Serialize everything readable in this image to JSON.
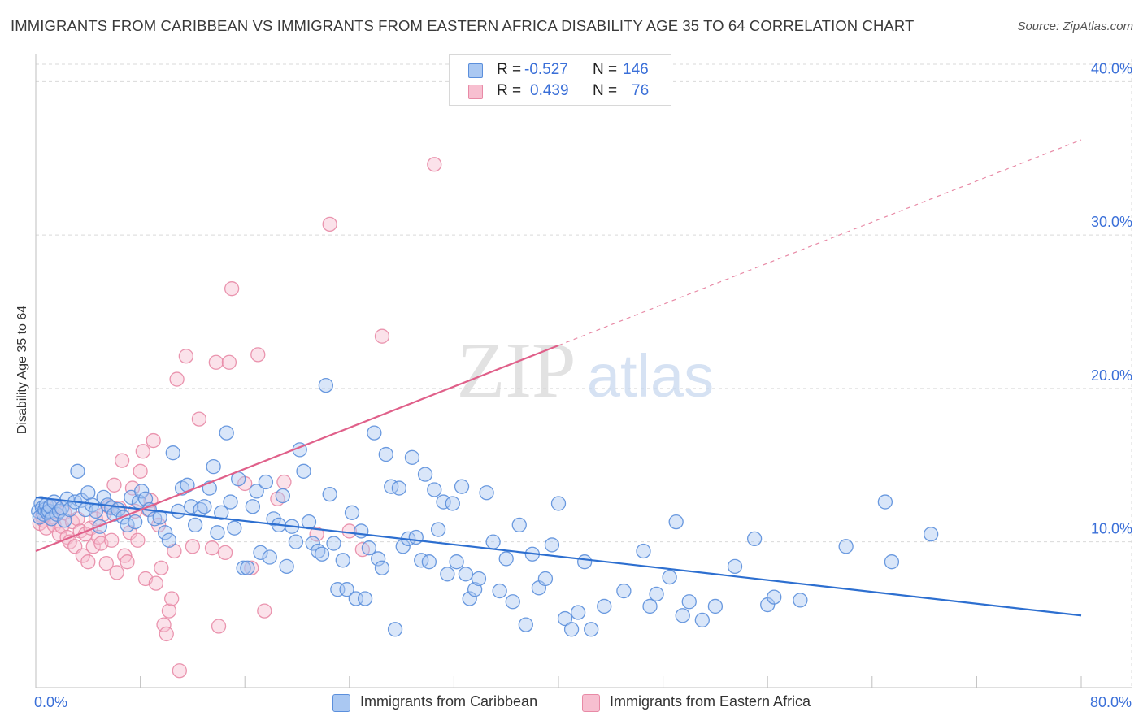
{
  "title": "IMMIGRANTS FROM CARIBBEAN VS IMMIGRANTS FROM EASTERN AFRICA DISABILITY AGE 35 TO 64 CORRELATION CHART",
  "source": "Source: ZipAtlas.com",
  "watermark": {
    "zip": "ZIP",
    "atlas": "atlas"
  },
  "legend_top": {
    "r_label": "R =",
    "n_label": "N =",
    "rows": [
      {
        "r": "-0.527",
        "n": "146"
      },
      {
        "r": "0.439",
        "n": "76"
      }
    ]
  },
  "colors": {
    "caribbean_fill": "#aac8f2",
    "caribbean_stroke": "#5b8fdc",
    "caribbean_line": "#2d6fd0",
    "eafrica_fill": "#f7bfd0",
    "eafrica_stroke": "#e88aa6",
    "eafrica_line": "#e0608a",
    "axis_label": "#3a6fd8",
    "grid": "#d9d9d9"
  },
  "chart_data": {
    "type": "scatter",
    "title": "IMMIGRANTS FROM CARIBBEAN VS IMMIGRANTS FROM EASTERN AFRICA DISABILITY AGE 35 TO 64 CORRELATION CHART",
    "xlabel": "",
    "ylabel": "Disability Age 35 to 64",
    "xlim": [
      0,
      80
    ],
    "ylim": [
      0.5,
      41.5
    ],
    "x_tick_labels": [
      {
        "value": 0,
        "label": "0.0%"
      },
      {
        "value": 80,
        "label": "80.0%"
      }
    ],
    "x_minor_ticks": [
      0,
      8,
      16,
      24,
      32,
      40,
      48,
      56,
      64,
      72,
      80
    ],
    "y_ticks": [
      {
        "value": 10,
        "label": "10.0%"
      },
      {
        "value": 20,
        "label": "20.0%"
      },
      {
        "value": 30,
        "label": "30.0%"
      },
      {
        "value": 40,
        "label": "40.0%"
      }
    ],
    "grid": true,
    "legend_position": "bottom",
    "series": [
      {
        "name": "Immigrants from Caribbean",
        "R": -0.527,
        "N": 146,
        "trend": {
          "x0": 0,
          "y0": 12.9,
          "x1": 80,
          "y1": 5.2
        },
        "points": [
          [
            0.2,
            12.0
          ],
          [
            0.3,
            11.6
          ],
          [
            0.4,
            12.5
          ],
          [
            0.5,
            12.2
          ],
          [
            0.6,
            11.8
          ],
          [
            0.7,
            12.1
          ],
          [
            0.8,
            12.4
          ],
          [
            0.9,
            11.9
          ],
          [
            1.0,
            12.0
          ],
          [
            1.1,
            12.3
          ],
          [
            1.2,
            11.5
          ],
          [
            1.4,
            12.6
          ],
          [
            1.6,
            11.8
          ],
          [
            1.8,
            12.0
          ],
          [
            2.0,
            12.2
          ],
          [
            2.2,
            11.4
          ],
          [
            2.4,
            12.8
          ],
          [
            2.6,
            12.1
          ],
          [
            3.0,
            12.6
          ],
          [
            3.2,
            14.6
          ],
          [
            3.5,
            12.7
          ],
          [
            3.8,
            12.1
          ],
          [
            4.0,
            13.2
          ],
          [
            4.3,
            12.4
          ],
          [
            4.6,
            12.0
          ],
          [
            4.9,
            11.0
          ],
          [
            5.2,
            12.9
          ],
          [
            5.5,
            12.4
          ],
          [
            5.8,
            12.2
          ],
          [
            6.0,
            11.8
          ],
          [
            6.3,
            12.1
          ],
          [
            6.7,
            11.6
          ],
          [
            7.0,
            11.1
          ],
          [
            7.3,
            12.9
          ],
          [
            7.6,
            11.3
          ],
          [
            7.9,
            12.6
          ],
          [
            8.1,
            13.3
          ],
          [
            8.4,
            12.8
          ],
          [
            8.7,
            12.1
          ],
          [
            9.1,
            11.5
          ],
          [
            9.5,
            11.6
          ],
          [
            9.9,
            10.6
          ],
          [
            10.2,
            10.1
          ],
          [
            10.5,
            15.8
          ],
          [
            10.9,
            12.0
          ],
          [
            11.2,
            13.5
          ],
          [
            11.6,
            13.7
          ],
          [
            11.9,
            12.3
          ],
          [
            12.2,
            11.1
          ],
          [
            12.6,
            12.1
          ],
          [
            12.9,
            12.3
          ],
          [
            13.3,
            13.5
          ],
          [
            13.6,
            14.9
          ],
          [
            13.9,
            10.6
          ],
          [
            14.2,
            11.9
          ],
          [
            14.6,
            17.1
          ],
          [
            14.9,
            12.6
          ],
          [
            15.2,
            10.9
          ],
          [
            15.5,
            14.1
          ],
          [
            15.9,
            8.3
          ],
          [
            16.2,
            8.3
          ],
          [
            16.6,
            12.3
          ],
          [
            16.9,
            13.3
          ],
          [
            17.2,
            9.3
          ],
          [
            17.6,
            13.9
          ],
          [
            17.9,
            9.0
          ],
          [
            18.2,
            11.5
          ],
          [
            18.6,
            11.1
          ],
          [
            18.9,
            13.0
          ],
          [
            19.2,
            8.4
          ],
          [
            19.6,
            11.0
          ],
          [
            19.9,
            10.0
          ],
          [
            20.2,
            16.0
          ],
          [
            20.5,
            14.6
          ],
          [
            20.9,
            11.3
          ],
          [
            21.2,
            9.9
          ],
          [
            21.6,
            9.4
          ],
          [
            21.9,
            9.2
          ],
          [
            22.2,
            20.2
          ],
          [
            22.5,
            13.1
          ],
          [
            22.8,
            9.9
          ],
          [
            23.1,
            6.9
          ],
          [
            23.5,
            8.8
          ],
          [
            23.8,
            6.9
          ],
          [
            24.2,
            11.9
          ],
          [
            24.5,
            6.3
          ],
          [
            24.9,
            10.7
          ],
          [
            25.2,
            6.3
          ],
          [
            25.5,
            9.6
          ],
          [
            25.9,
            17.1
          ],
          [
            26.2,
            8.9
          ],
          [
            26.5,
            8.3
          ],
          [
            26.8,
            15.7
          ],
          [
            27.2,
            13.6
          ],
          [
            27.5,
            4.3
          ],
          [
            27.8,
            13.5
          ],
          [
            28.1,
            9.7
          ],
          [
            28.5,
            10.2
          ],
          [
            28.8,
            15.5
          ],
          [
            29.1,
            10.3
          ],
          [
            29.5,
            8.8
          ],
          [
            29.8,
            14.4
          ],
          [
            30.1,
            8.7
          ],
          [
            30.5,
            13.4
          ],
          [
            30.8,
            10.8
          ],
          [
            31.2,
            12.6
          ],
          [
            31.5,
            7.9
          ],
          [
            31.9,
            12.5
          ],
          [
            32.2,
            8.7
          ],
          [
            32.6,
            13.6
          ],
          [
            32.9,
            7.9
          ],
          [
            33.2,
            6.3
          ],
          [
            33.6,
            6.9
          ],
          [
            33.9,
            7.6
          ],
          [
            34.5,
            13.2
          ],
          [
            35.0,
            10.0
          ],
          [
            35.5,
            6.8
          ],
          [
            36.0,
            8.9
          ],
          [
            36.5,
            6.1
          ],
          [
            37.0,
            11.1
          ],
          [
            37.5,
            4.6
          ],
          [
            38.0,
            9.2
          ],
          [
            38.5,
            7.0
          ],
          [
            39.0,
            7.6
          ],
          [
            39.5,
            9.8
          ],
          [
            40.0,
            12.5
          ],
          [
            40.5,
            5.0
          ],
          [
            41.0,
            4.3
          ],
          [
            41.5,
            5.4
          ],
          [
            42.0,
            8.7
          ],
          [
            42.5,
            4.3
          ],
          [
            43.5,
            5.8
          ],
          [
            45.0,
            6.8
          ],
          [
            46.5,
            9.4
          ],
          [
            47.0,
            5.8
          ],
          [
            47.5,
            6.6
          ],
          [
            48.5,
            7.7
          ],
          [
            49.0,
            11.3
          ],
          [
            49.5,
            5.2
          ],
          [
            50.0,
            6.1
          ],
          [
            51.0,
            4.9
          ],
          [
            52.0,
            5.8
          ],
          [
            53.5,
            8.4
          ],
          [
            55.0,
            10.2
          ],
          [
            56.0,
            5.9
          ],
          [
            56.5,
            6.4
          ],
          [
            58.5,
            6.2
          ],
          [
            62.0,
            9.7
          ],
          [
            65.0,
            12.6
          ],
          [
            65.5,
            8.7
          ],
          [
            68.5,
            10.5
          ]
        ]
      },
      {
        "name": "Immigrants from Eastern Africa",
        "R": 0.439,
        "N": 76,
        "trend": {
          "x0": 0,
          "y0": 9.4,
          "x1": 40,
          "y1": 22.8
        },
        "trend_dashed": {
          "x0": 40,
          "y0": 22.8,
          "x1": 80,
          "y1": 36.2
        },
        "points": [
          [
            0.3,
            11.2
          ],
          [
            0.5,
            11.7
          ],
          [
            0.6,
            11.4
          ],
          [
            0.8,
            10.9
          ],
          [
            1.0,
            12.0
          ],
          [
            1.2,
            11.6
          ],
          [
            1.4,
            11.1
          ],
          [
            1.6,
            12.3
          ],
          [
            1.8,
            10.5
          ],
          [
            2.0,
            11.0
          ],
          [
            2.2,
            11.9
          ],
          [
            2.4,
            10.3
          ],
          [
            2.6,
            10.0
          ],
          [
            2.8,
            11.3
          ],
          [
            3.0,
            9.7
          ],
          [
            3.2,
            11.5
          ],
          [
            3.4,
            10.7
          ],
          [
            3.6,
            9.1
          ],
          [
            3.8,
            10.5
          ],
          [
            4.0,
            8.7
          ],
          [
            4.2,
            10.9
          ],
          [
            4.4,
            9.7
          ],
          [
            4.6,
            11.5
          ],
          [
            4.8,
            10.3
          ],
          [
            5.0,
            9.9
          ],
          [
            5.2,
            11.8
          ],
          [
            5.4,
            8.6
          ],
          [
            5.6,
            12.3
          ],
          [
            5.8,
            10.1
          ],
          [
            6.0,
            13.7
          ],
          [
            6.2,
            8.0
          ],
          [
            6.4,
            12.2
          ],
          [
            6.6,
            15.3
          ],
          [
            6.8,
            9.1
          ],
          [
            7.0,
            8.7
          ],
          [
            7.2,
            10.6
          ],
          [
            7.4,
            13.5
          ],
          [
            7.6,
            12.0
          ],
          [
            7.8,
            10.1
          ],
          [
            8.0,
            14.6
          ],
          [
            8.2,
            15.9
          ],
          [
            8.4,
            7.6
          ],
          [
            8.6,
            12.1
          ],
          [
            8.8,
            12.7
          ],
          [
            9.0,
            16.6
          ],
          [
            9.2,
            7.3
          ],
          [
            9.4,
            11.1
          ],
          [
            9.6,
            8.3
          ],
          [
            9.8,
            4.6
          ],
          [
            10.0,
            4.0
          ],
          [
            10.2,
            5.5
          ],
          [
            10.4,
            6.3
          ],
          [
            10.6,
            9.4
          ],
          [
            10.8,
            20.6
          ],
          [
            11.0,
            1.6
          ],
          [
            11.5,
            22.1
          ],
          [
            12.0,
            9.7
          ],
          [
            12.5,
            18.0
          ],
          [
            13.5,
            9.6
          ],
          [
            13.8,
            21.7
          ],
          [
            14.0,
            4.5
          ],
          [
            14.5,
            9.3
          ],
          [
            14.8,
            21.7
          ],
          [
            15.0,
            26.5
          ],
          [
            16.0,
            13.8
          ],
          [
            16.5,
            8.3
          ],
          [
            17.0,
            22.2
          ],
          [
            17.5,
            5.5
          ],
          [
            18.5,
            12.8
          ],
          [
            19.0,
            13.9
          ],
          [
            21.5,
            10.5
          ],
          [
            22.5,
            30.7
          ],
          [
            24.0,
            10.7
          ],
          [
            25.0,
            9.5
          ],
          [
            26.5,
            23.4
          ],
          [
            30.5,
            34.6
          ]
        ]
      }
    ]
  }
}
